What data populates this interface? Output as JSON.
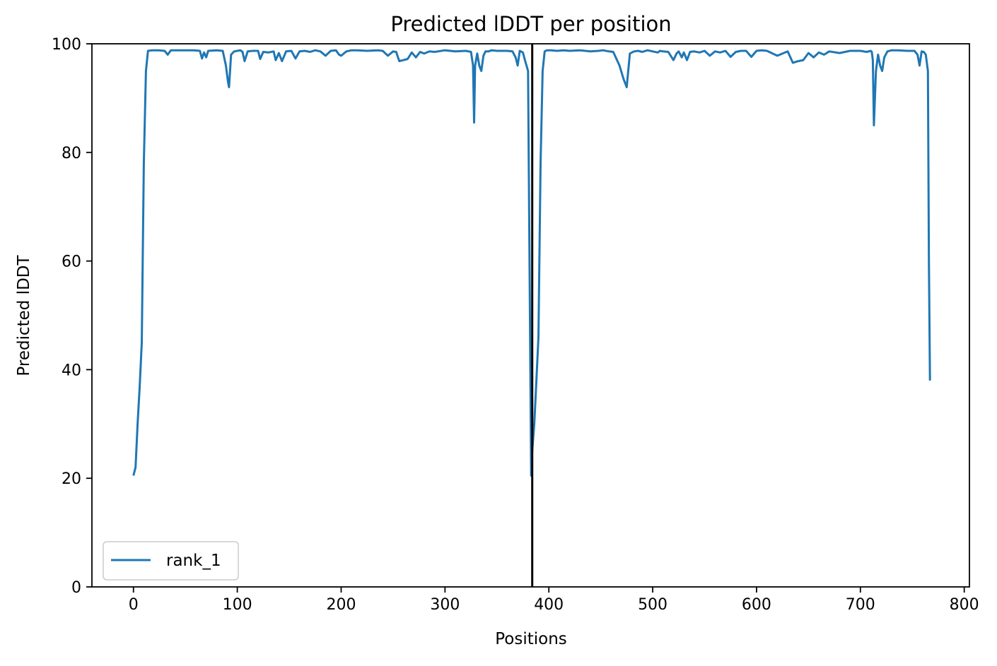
{
  "chart_data": {
    "type": "line",
    "title": "Predicted lDDT per position",
    "xlabel": "Positions",
    "ylabel": "Predicted lDDT",
    "xlim": [
      -40,
      805
    ],
    "ylim": [
      0,
      100
    ],
    "xticks": [
      0,
      100,
      200,
      300,
      400,
      500,
      600,
      700,
      800
    ],
    "yticks": [
      0,
      20,
      40,
      60,
      80,
      100
    ],
    "grid": false,
    "legend_position": "lower-left",
    "chain_boundaries": [
      384
    ],
    "colors": {
      "series": "#1f77b4",
      "boundary": "#000000"
    },
    "series": [
      {
        "name": "rank_1",
        "x": [
          0,
          2,
          4,
          6,
          8,
          10,
          12,
          14,
          18,
          24,
          30,
          33,
          36,
          42,
          50,
          58,
          64,
          66,
          68,
          70,
          72,
          80,
          86,
          89,
          91,
          92,
          94,
          97,
          100,
          103,
          105,
          107,
          110,
          115,
          120,
          122,
          125,
          130,
          135,
          137,
          140,
          143,
          147,
          152,
          156,
          160,
          165,
          170,
          175,
          180,
          185,
          190,
          195,
          198,
          200,
          205,
          210,
          215,
          225,
          235,
          240,
          245,
          250,
          253,
          256,
          260,
          264,
          268,
          272,
          276,
          280,
          285,
          290,
          300,
          310,
          320,
          325,
          327,
          328,
          329,
          331,
          333,
          335,
          337,
          339,
          342,
          345,
          350,
          360,
          365,
          368,
          370,
          372,
          375,
          377,
          380,
          383,
          384,
          386,
          388,
          390,
          392,
          394,
          396,
          398,
          402,
          408,
          414,
          420,
          430,
          440,
          448,
          452,
          458,
          462,
          468,
          472,
          475,
          478,
          482,
          486,
          490,
          495,
          500,
          505,
          507,
          510,
          515,
          520,
          523,
          525,
          528,
          530,
          533,
          536,
          540,
          545,
          550,
          555,
          560,
          565,
          570,
          575,
          580,
          585,
          590,
          595,
          600,
          605,
          610,
          620,
          630,
          635,
          640,
          645,
          650,
          655,
          660,
          665,
          670,
          680,
          690,
          700,
          706,
          710,
          711,
          712,
          713,
          715,
          717,
          719,
          721,
          723,
          726,
          730,
          735,
          745,
          752,
          755,
          757,
          759,
          761,
          763,
          765,
          766,
          767
        ],
        "y": [
          20.5,
          22,
          30,
          37,
          45,
          78,
          95,
          98.7,
          98.8,
          98.8,
          98.7,
          98.0,
          98.8,
          98.8,
          98.8,
          98.8,
          98.7,
          97.3,
          98.4,
          97.5,
          98.7,
          98.8,
          98.7,
          96.0,
          93.0,
          92.0,
          98.0,
          98.6,
          98.7,
          98.8,
          98.5,
          96.8,
          98.6,
          98.7,
          98.7,
          97.2,
          98.5,
          98.4,
          98.6,
          97.0,
          98.3,
          96.8,
          98.6,
          98.7,
          97.3,
          98.6,
          98.7,
          98.5,
          98.8,
          98.6,
          97.8,
          98.7,
          98.8,
          98.0,
          97.8,
          98.6,
          98.8,
          98.8,
          98.7,
          98.8,
          98.7,
          97.8,
          98.6,
          98.5,
          96.8,
          97.0,
          97.2,
          98.4,
          97.5,
          98.5,
          98.2,
          98.6,
          98.5,
          98.8,
          98.6,
          98.7,
          98.5,
          96.0,
          85.5,
          96.0,
          98.2,
          96.0,
          95.0,
          97.8,
          98.6,
          98.6,
          98.8,
          98.7,
          98.7,
          98.6,
          97.5,
          96.0,
          98.7,
          98.4,
          97.0,
          95.0,
          20.5,
          25,
          30,
          38,
          46,
          78,
          95,
          98.6,
          98.8,
          98.8,
          98.7,
          98.8,
          98.7,
          98.8,
          98.6,
          98.7,
          98.8,
          98.6,
          98.5,
          96.0,
          93.5,
          92.0,
          98.2,
          98.6,
          98.7,
          98.5,
          98.8,
          98.6,
          98.4,
          98.7,
          98.6,
          98.5,
          97.0,
          98.2,
          98.6,
          97.5,
          98.4,
          97.0,
          98.5,
          98.6,
          98.4,
          98.7,
          97.8,
          98.6,
          98.4,
          98.7,
          97.6,
          98.5,
          98.7,
          98.7,
          97.6,
          98.7,
          98.8,
          98.7,
          97.8,
          98.6,
          96.5,
          96.8,
          97.0,
          98.3,
          97.5,
          98.4,
          98.0,
          98.6,
          98.3,
          98.7,
          98.7,
          98.5,
          98.7,
          98.5,
          97.0,
          85.0,
          95.0,
          98.0,
          96.0,
          95.0,
          97.5,
          98.6,
          98.8,
          98.8,
          98.7,
          98.7,
          98.0,
          96.0,
          98.6,
          98.5,
          98.0,
          95.0,
          60,
          38
        ]
      }
    ]
  }
}
